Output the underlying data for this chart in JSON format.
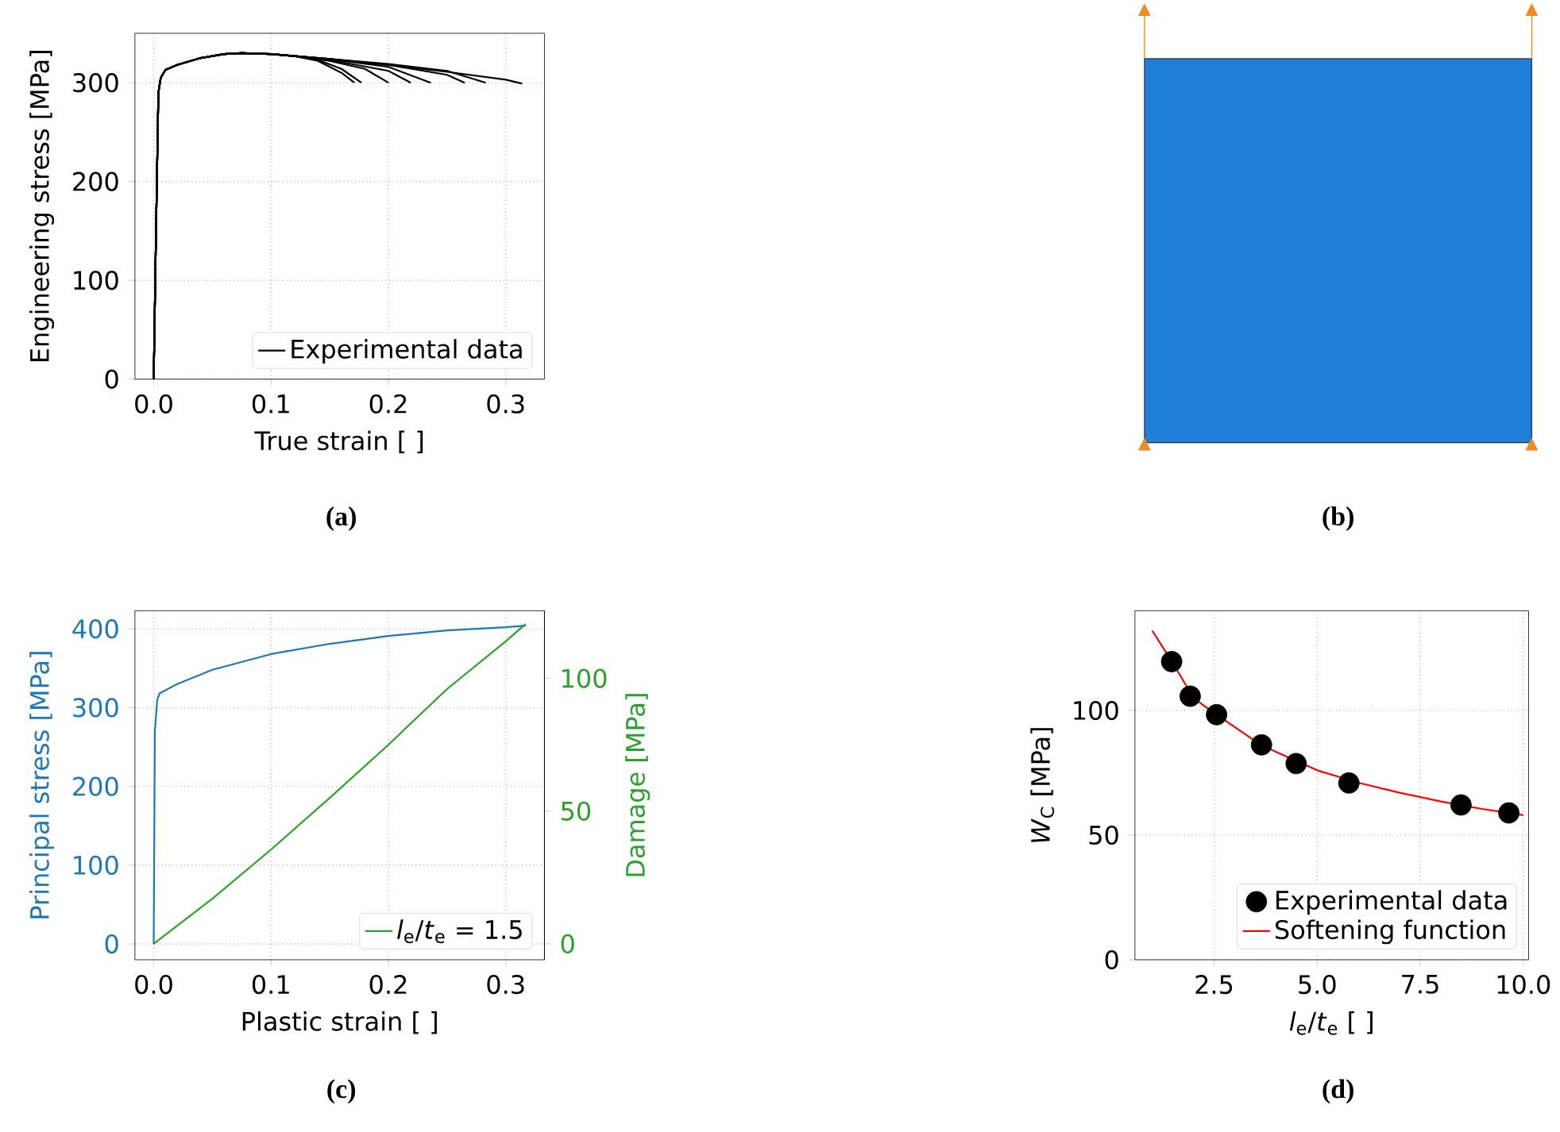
{
  "chart_data": [
    {
      "type": "line",
      "xlabel": "True strain [ ]",
      "ylabel": "Engineering stress [MPa]",
      "xlim": [
        -0.016,
        0.333
      ],
      "ylim": [
        0,
        350
      ],
      "xticks": [
        {
          "value": 0,
          "label": "0.0"
        },
        0.1,
        0.2,
        0.3
      ],
      "yticks": [
        0,
        100,
        200,
        300
      ],
      "grid": true,
      "legend": "bottom right",
      "series": [
        {
          "name": "Experimental data",
          "color": "#000000",
          "x": [
            0,
            0.002,
            0.004,
            0.006,
            0.01,
            0.02,
            0.04,
            0.06,
            0.075,
            0.1,
            0.12,
            0.14,
            0.16,
            0.171
          ],
          "values": [
            0,
            150,
            290,
            305,
            313,
            318,
            325,
            329,
            330,
            329,
            327,
            322,
            310,
            300
          ]
        },
        {
          "color": "#000000",
          "x": [
            0,
            0.002,
            0.004,
            0.006,
            0.01,
            0.02,
            0.04,
            0.06,
            0.075,
            0.1,
            0.12,
            0.14,
            0.16,
            0.177
          ],
          "values": [
            0,
            150,
            290,
            305,
            313,
            318,
            325,
            329,
            330,
            329,
            327,
            323,
            314,
            300
          ]
        },
        {
          "color": "#000000",
          "x": [
            0,
            0.002,
            0.004,
            0.006,
            0.01,
            0.02,
            0.04,
            0.06,
            0.075,
            0.1,
            0.12,
            0.15,
            0.18,
            0.2
          ],
          "values": [
            0,
            150,
            290,
            305,
            313,
            318,
            325,
            329,
            330,
            329,
            327,
            322,
            314,
            300
          ]
        },
        {
          "color": "#000000",
          "x": [
            0,
            0.002,
            0.004,
            0.006,
            0.01,
            0.02,
            0.04,
            0.06,
            0.075,
            0.1,
            0.12,
            0.15,
            0.2,
            0.219
          ],
          "values": [
            0,
            150,
            290,
            305,
            313,
            318,
            325,
            329,
            330,
            329,
            327,
            323,
            312,
            300
          ]
        },
        {
          "color": "#000000",
          "x": [
            0,
            0.002,
            0.004,
            0.006,
            0.01,
            0.02,
            0.04,
            0.06,
            0.075,
            0.1,
            0.12,
            0.15,
            0.2,
            0.236
          ],
          "values": [
            0,
            150,
            290,
            305,
            313,
            318,
            325,
            329,
            330,
            329,
            327,
            324,
            316,
            300
          ]
        },
        {
          "color": "#000000",
          "x": [
            0,
            0.002,
            0.004,
            0.006,
            0.01,
            0.02,
            0.04,
            0.06,
            0.075,
            0.1,
            0.15,
            0.2,
            0.25,
            0.265
          ],
          "values": [
            0,
            150,
            290,
            305,
            313,
            318,
            325,
            329,
            330,
            329,
            324,
            318,
            308,
            300
          ]
        },
        {
          "color": "#000000",
          "x": [
            0,
            0.002,
            0.004,
            0.006,
            0.01,
            0.02,
            0.04,
            0.06,
            0.075,
            0.1,
            0.15,
            0.2,
            0.25,
            0.283
          ],
          "values": [
            0,
            150,
            290,
            305,
            313,
            318,
            325,
            329,
            330,
            329,
            324,
            319,
            312,
            300
          ]
        },
        {
          "color": "#000000",
          "x": [
            0,
            0.002,
            0.004,
            0.006,
            0.01,
            0.02,
            0.04,
            0.06,
            0.075,
            0.1,
            0.15,
            0.2,
            0.25,
            0.3,
            0.314
          ],
          "values": [
            0,
            150,
            290,
            305,
            313,
            318,
            325,
            329,
            330,
            329,
            324,
            318,
            311,
            303,
            299
          ]
        }
      ],
      "annotations": [
        "(a)"
      ]
    },
    {
      "type": "other",
      "annotations": [
        "(b)"
      ]
    },
    {
      "type": "line",
      "xlabel": "Plastic strain [ ]",
      "ylabel": "Principal stress [MPa]",
      "y2label": "Damage [MPa]",
      "xlim": [
        -0.016,
        0.333
      ],
      "ylim": [
        -20,
        423
      ],
      "y2lim": [
        -6,
        125.5
      ],
      "xticks": [
        {
          "value": 0,
          "label": "0.0"
        },
        0.1,
        0.2,
        0.3
      ],
      "yticks": [
        0,
        100,
        200,
        300,
        400
      ],
      "y2ticks": [
        0,
        50,
        100
      ],
      "grid": true,
      "legend": "bottom right",
      "series": [
        {
          "color": "#1f77b4",
          "x": [
            0,
            0.001,
            0.003,
            0.005,
            0.02,
            0.05,
            0.1,
            0.15,
            0.2,
            0.25,
            0.3,
            0.317
          ],
          "values": [
            0,
            270,
            310,
            318,
            330,
            348,
            368,
            381,
            391,
            398,
            402,
            404
          ]
        },
        {
          "name": "*l*$_{e}$/*t*$_{e}$ = 1.5",
          "color": "#2ca02c",
          "axis": "y2",
          "x": [
            0,
            0.05,
            0.1,
            0.15,
            0.2,
            0.25,
            0.3,
            0.317
          ],
          "values": [
            0,
            17,
            35.5,
            55,
            75,
            96,
            114,
            120.5
          ]
        }
      ],
      "annotations": [
        "(c)"
      ]
    },
    {
      "type": "scatter",
      "xlabel": "*l*$_{e}$/*t*$_{e}$ [ ]",
      "ylabel": "*W*$_{C}$ [MPa]",
      "xlim": [
        0.58,
        10.13
      ],
      "ylim": [
        0,
        140
      ],
      "xticks": [
        {
          "value": 2.5,
          "label": "2.5"
        },
        {
          "value": 5,
          "label": "5.0"
        },
        {
          "value": 7.5,
          "label": "7.5"
        },
        {
          "value": 10,
          "label": "10.0"
        }
      ],
      "yticks": [
        0,
        50,
        100
      ],
      "grid": true,
      "legend": "bottom right",
      "series": [
        {
          "name": "Experimental data",
          "color": "#000000",
          "marker": "circle",
          "x": [
            1.47,
            1.92,
            2.56,
            3.65,
            4.49,
            5.77,
            8.49,
            9.65
          ],
          "values": [
            119.6,
            105.7,
            98.3,
            86.2,
            78.7,
            70.9,
            62.1,
            58.9
          ]
        },
        {
          "name": "Softening function",
          "type": "line",
          "color": "#ff0000",
          "x": [
            1,
            1.5,
            2,
            2.5,
            3.65,
            5,
            6,
            7,
            8,
            9,
            10
          ],
          "values": [
            132,
            119,
            105,
            99,
            86,
            76,
            71,
            67,
            63.5,
            60.5,
            58
          ]
        }
      ],
      "annotations": [
        "(d)"
      ]
    }
  ]
}
